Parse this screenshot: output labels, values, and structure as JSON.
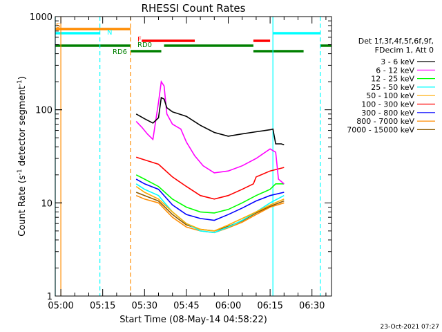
{
  "chart_data": {
    "type": "line",
    "title": "RHESSI Count Rates",
    "xlabel": "Start Time (08-May-14 04:58:22)",
    "ylabel_pre": "Count Rate (s",
    "ylabel_sup1": "-1",
    "ylabel_mid": " detector segment",
    "ylabel_sup2": "-1",
    "ylabel_post": ")",
    "ylog": true,
    "ylim": [
      1,
      1000
    ],
    "xlim": [
      "04:58",
      "06:37"
    ],
    "x_ticks": [
      "05:00",
      "05:15",
      "05:30",
      "05:45",
      "06:00",
      "06:15",
      "06:30"
    ],
    "y_ticks": [
      "1",
      "10",
      "100",
      "1000"
    ],
    "legend_header": [
      "Det 1f,3f,4f,5f,6f,9f,",
      "FDecim 1, Att 0"
    ],
    "legend_placement": "right",
    "timestamp": "23-Oct-2021 07:27",
    "series": [
      {
        "name": "3 - 6 keV",
        "color": "#000000",
        "points": [
          [
            "05:27",
            90
          ],
          [
            "05:30",
            80
          ],
          [
            "05:33",
            72
          ],
          [
            "05:35",
            82
          ],
          [
            "05:36",
            135
          ],
          [
            "05:37",
            130
          ],
          [
            "05:38",
            105
          ],
          [
            "05:40",
            95
          ],
          [
            "05:45",
            85
          ],
          [
            "05:50",
            68
          ],
          [
            "05:55",
            57
          ],
          [
            "06:00",
            52
          ],
          [
            "06:05",
            55
          ],
          [
            "06:10",
            58
          ],
          [
            "06:15",
            61
          ],
          [
            "06:16",
            62
          ],
          [
            "06:17",
            43
          ],
          [
            "06:19",
            43
          ],
          [
            "06:20",
            42
          ]
        ]
      },
      {
        "name": "6 - 12 keV",
        "color": "#ff00ff",
        "points": [
          [
            "05:27",
            75
          ],
          [
            "05:29",
            65
          ],
          [
            "05:31",
            55
          ],
          [
            "05:33",
            48
          ],
          [
            "05:35",
            120
          ],
          [
            "05:36",
            200
          ],
          [
            "05:37",
            180
          ],
          [
            "05:38",
            90
          ],
          [
            "05:40",
            70
          ],
          [
            "05:43",
            62
          ],
          [
            "05:45",
            45
          ],
          [
            "05:48",
            32
          ],
          [
            "05:51",
            25
          ],
          [
            "05:55",
            21
          ],
          [
            "06:00",
            22
          ],
          [
            "06:05",
            25
          ],
          [
            "06:10",
            30
          ],
          [
            "06:15",
            38
          ],
          [
            "06:17",
            35
          ],
          [
            "06:18",
            18
          ],
          [
            "06:20",
            16
          ]
        ]
      },
      {
        "name": "12 - 25 keV",
        "color": "#00ff00",
        "points": [
          [
            "05:27",
            20
          ],
          [
            "05:30",
            18
          ],
          [
            "05:35",
            15
          ],
          [
            "05:40",
            11
          ],
          [
            "05:45",
            9
          ],
          [
            "05:50",
            8
          ],
          [
            "05:55",
            7.8
          ],
          [
            "06:00",
            8.5
          ],
          [
            "06:05",
            10
          ],
          [
            "06:10",
            12
          ],
          [
            "06:15",
            14
          ],
          [
            "06:17",
            16
          ],
          [
            "06:20",
            16
          ]
        ]
      },
      {
        "name": "25 - 50 keV",
        "color": "#00ffff",
        "points": [
          [
            "05:27",
            16
          ],
          [
            "05:30",
            14
          ],
          [
            "05:35",
            12
          ],
          [
            "05:40",
            8
          ],
          [
            "05:45",
            6
          ],
          [
            "05:50",
            5
          ],
          [
            "05:55",
            4.8
          ],
          [
            "06:00",
            5.5
          ],
          [
            "06:05",
            6.5
          ],
          [
            "06:10",
            8
          ],
          [
            "06:15",
            10
          ],
          [
            "06:20",
            12
          ]
        ]
      },
      {
        "name": "50 - 100 keV",
        "color": "#ffaa00",
        "points": [
          [
            "05:27",
            15
          ],
          [
            "05:30",
            13
          ],
          [
            "05:35",
            11
          ],
          [
            "05:40",
            8
          ],
          [
            "05:45",
            6
          ],
          [
            "05:50",
            5.2
          ],
          [
            "05:55",
            5
          ],
          [
            "06:00",
            5.8
          ],
          [
            "06:05",
            6.8
          ],
          [
            "06:10",
            8
          ],
          [
            "06:15",
            9.5
          ],
          [
            "06:20",
            11
          ]
        ]
      },
      {
        "name": "100 - 300 keV",
        "color": "#ff0000",
        "points": [
          [
            "05:27",
            31
          ],
          [
            "05:30",
            29
          ],
          [
            "05:35",
            26
          ],
          [
            "05:40",
            19
          ],
          [
            "05:45",
            15
          ],
          [
            "05:50",
            12
          ],
          [
            "05:55",
            11
          ],
          [
            "06:00",
            12
          ],
          [
            "06:05",
            14
          ],
          [
            "06:09",
            16
          ],
          [
            "06:10",
            19
          ],
          [
            "06:15",
            22
          ],
          [
            "06:20",
            24
          ]
        ]
      },
      {
        "name": "300 - 800 keV",
        "color": "#0000ff",
        "points": [
          [
            "05:27",
            18
          ],
          [
            "05:30",
            16
          ],
          [
            "05:35",
            14
          ],
          [
            "05:40",
            9.5
          ],
          [
            "05:45",
            7.5
          ],
          [
            "05:50",
            6.8
          ],
          [
            "05:55",
            6.5
          ],
          [
            "06:00",
            7.5
          ],
          [
            "06:05",
            8.8
          ],
          [
            "06:10",
            10.5
          ],
          [
            "06:15",
            12
          ],
          [
            "06:20",
            13
          ]
        ]
      },
      {
        "name": "800 - 7000 keV",
        "color": "#ff8c00",
        "points": [
          [
            "05:27",
            12
          ],
          [
            "05:30",
            11
          ],
          [
            "05:35",
            10
          ],
          [
            "05:40",
            7
          ],
          [
            "05:45",
            5.5
          ],
          [
            "05:50",
            5
          ],
          [
            "05:55",
            4.8
          ],
          [
            "06:00",
            5.4
          ],
          [
            "06:05",
            6.2
          ],
          [
            "06:10",
            7.5
          ],
          [
            "06:15",
            9
          ],
          [
            "06:20",
            10
          ]
        ]
      },
      {
        "name": "7000 - 15000 keV",
        "color": "#8b5a00",
        "points": [
          [
            "05:27",
            13
          ],
          [
            "05:30",
            12
          ],
          [
            "05:35",
            10.5
          ],
          [
            "05:40",
            7.5
          ],
          [
            "05:45",
            5.8
          ],
          [
            "05:50",
            5.2
          ],
          [
            "05:55",
            5
          ],
          [
            "06:00",
            5.6
          ],
          [
            "06:05",
            6.4
          ],
          [
            "06:10",
            7.8
          ],
          [
            "06:15",
            9.2
          ],
          [
            "06:20",
            10.5
          ]
        ]
      }
    ],
    "vlines": [
      {
        "time": "04:58",
        "color": "#00ffff",
        "dash": false
      },
      {
        "time": "05:00",
        "color": "#ff8c00",
        "dash": false
      },
      {
        "time": "05:14",
        "color": "#00ffff",
        "dash": true
      },
      {
        "time": "05:25",
        "color": "#ff8c00",
        "dash": true
      },
      {
        "time": "06:16",
        "color": "#00ffff",
        "dash": false
      },
      {
        "time": "06:33",
        "color": "#00ffff",
        "dash": true
      }
    ],
    "flag_bars": [
      {
        "label": "S",
        "color": "#ff8c00",
        "segments": [
          [
            "04:58",
            "05:25"
          ]
        ]
      },
      {
        "label": "N",
        "color": "#00ffff",
        "segments": [
          [
            "04:58",
            "05:14"
          ],
          [
            "06:16",
            "06:33"
          ]
        ]
      },
      {
        "label": "F",
        "color": "#ff0000",
        "segments": [
          [
            "05:29",
            "05:48"
          ],
          [
            "06:09",
            "06:15"
          ]
        ]
      },
      {
        "label": "RD0",
        "color": "#008000",
        "segments": [
          [
            "04:58",
            "05:25"
          ],
          [
            "05:37",
            "06:09"
          ],
          [
            "06:33",
            "06:37"
          ]
        ]
      },
      {
        "label": "RD6",
        "color": "#008000",
        "segments": [
          [
            "05:25",
            "05:36"
          ],
          [
            "06:09",
            "06:27"
          ]
        ]
      }
    ]
  }
}
